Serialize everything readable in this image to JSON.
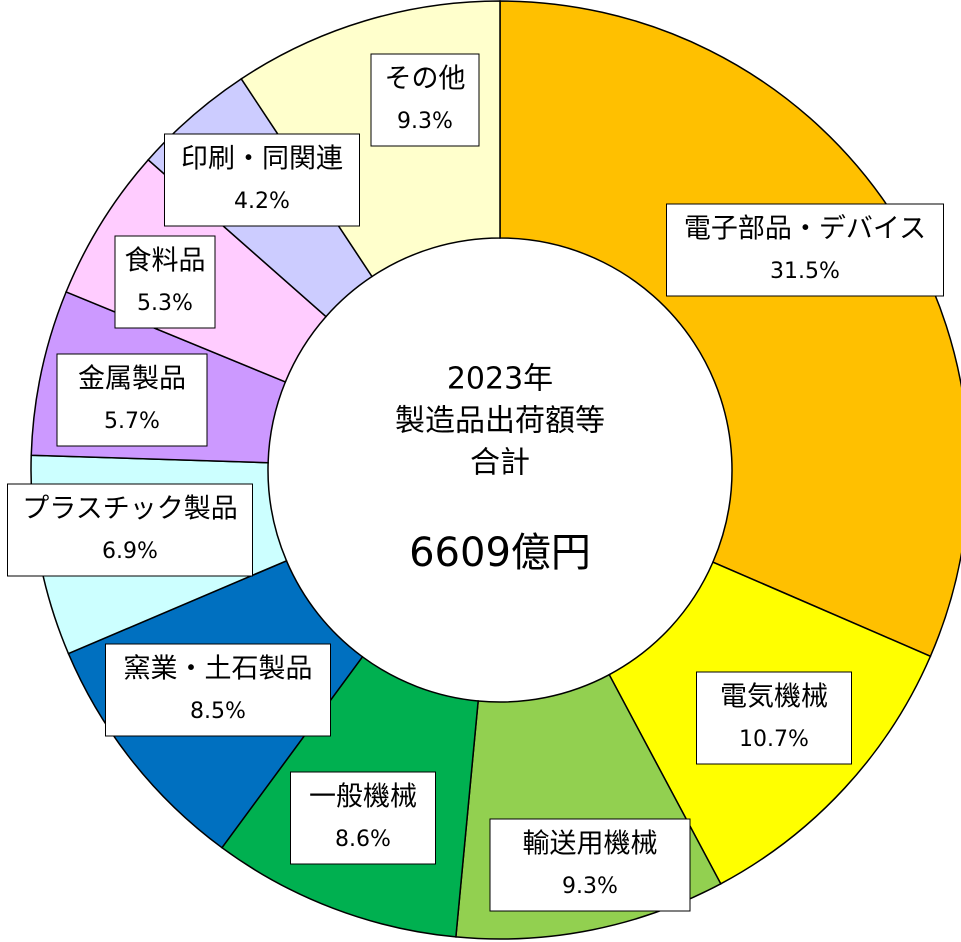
{
  "chart_data": {
    "type": "donut",
    "center_text": [
      "2023年",
      "製造品出荷額等",
      "合計"
    ],
    "total_label": "6609億円",
    "categories": [
      "電子部品・デバイス",
      "電気機械",
      "輸送用機械",
      "一般機械",
      "窯業・土石製品",
      "プラスチック製品",
      "金属製品",
      "食料品",
      "印刷・同関連",
      "その他"
    ],
    "values": [
      31.5,
      10.7,
      9.3,
      8.6,
      8.5,
      6.9,
      5.7,
      5.3,
      4.2,
      9.3
    ],
    "value_labels": [
      "31.5%",
      "10.7%",
      "9.3%",
      "8.6%",
      "8.5%",
      "6.9%",
      "5.7%",
      "5.3%",
      "4.2%",
      "9.3%"
    ],
    "colors": [
      "#FFC000",
      "#FFFF00",
      "#92D050",
      "#00B050",
      "#0070C0",
      "#CCFFFF",
      "#CC99FF",
      "#FFCCFF",
      "#CCCCFF",
      "#FFFFCC"
    ]
  }
}
